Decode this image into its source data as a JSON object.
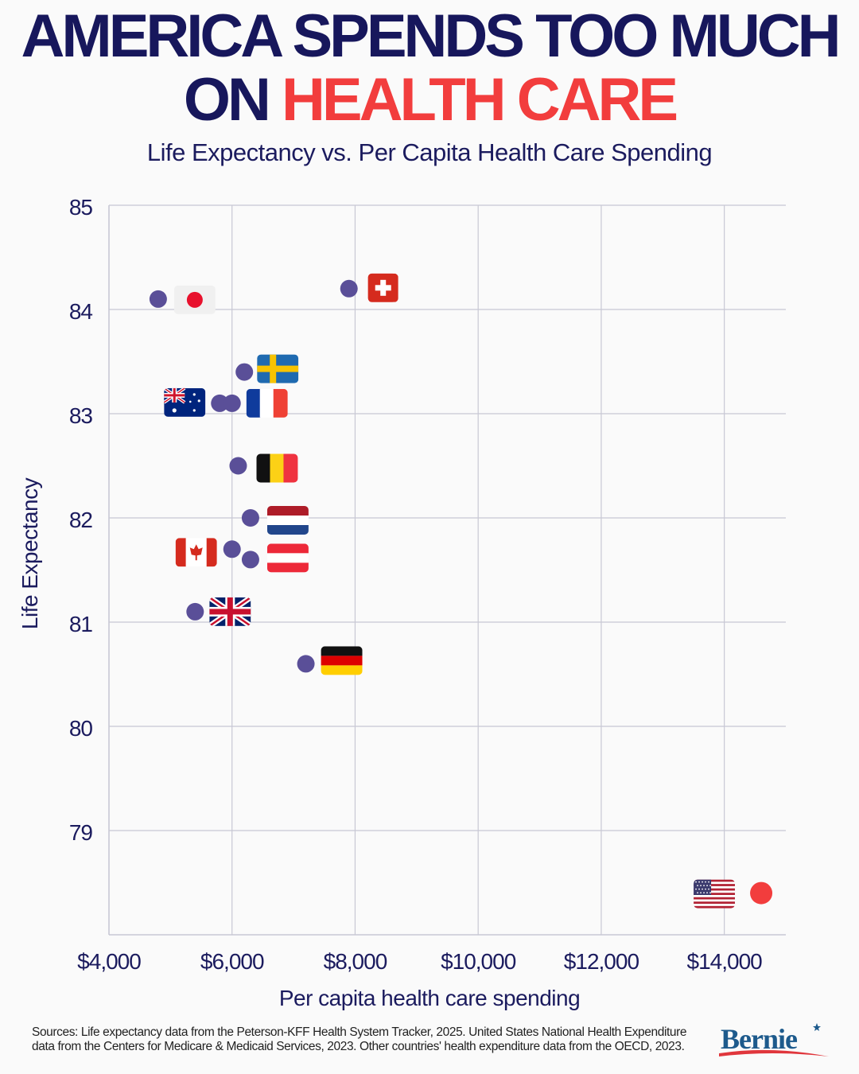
{
  "header": {
    "title_line1": "AMERICA SPENDS TOO MUCH",
    "title_line2_prefix": "ON ",
    "title_line2_highlight": "HEALTH CARE",
    "subtitle": "Life Expectancy vs. Per Capita Health Care Spending"
  },
  "colors": {
    "title": "#17175c",
    "highlight": "#f23d3d",
    "dot": "#5a4f98",
    "us_dot": "#f23d3d",
    "grid": "#c8c8d4"
  },
  "chart_data": {
    "type": "scatter",
    "title": "Life Expectancy vs. Per Capita Health Care Spending",
    "xlabel": "Per capita health care spending",
    "ylabel": "Life Expectancy",
    "xlim": [
      4000,
      15000
    ],
    "ylim": [
      78,
      85
    ],
    "xticks": [
      4000,
      6000,
      8000,
      10000,
      12000,
      14000
    ],
    "xtick_labels": [
      "$4,000",
      "$6,000",
      "$8,000",
      "$10,000",
      "$12,000",
      "$14,000"
    ],
    "yticks": [
      79,
      80,
      81,
      82,
      83,
      84,
      85
    ],
    "ytick_labels": [
      "79",
      "80",
      "81",
      "82",
      "83",
      "84",
      "85"
    ],
    "grid": true,
    "points": [
      {
        "country": "Japan",
        "flag": "japan-flag",
        "x": 4800,
        "y": 84.1
      },
      {
        "country": "Switzerland",
        "flag": "switzerland-flag",
        "x": 7900,
        "y": 84.2
      },
      {
        "country": "Sweden",
        "flag": "sweden-flag",
        "x": 6200,
        "y": 83.4
      },
      {
        "country": "Australia",
        "flag": "australia-flag",
        "x": 5800,
        "y": 83.1
      },
      {
        "country": "France",
        "flag": "france-flag",
        "x": 6000,
        "y": 83.1
      },
      {
        "country": "Belgium",
        "flag": "belgium-flag",
        "x": 6100,
        "y": 82.5
      },
      {
        "country": "Netherlands",
        "flag": "netherlands-flag",
        "x": 6300,
        "y": 82.0
      },
      {
        "country": "Canada",
        "flag": "canada-flag",
        "x": 6000,
        "y": 81.7
      },
      {
        "country": "Austria",
        "flag": "austria-flag",
        "x": 6300,
        "y": 81.6
      },
      {
        "country": "United Kingdom",
        "flag": "uk-flag",
        "x": 5400,
        "y": 81.1
      },
      {
        "country": "Germany",
        "flag": "germany-flag",
        "x": 7200,
        "y": 80.6
      },
      {
        "country": "United States",
        "flag": "usa-flag",
        "x": 14600,
        "y": 78.4,
        "highlight": true
      }
    ]
  },
  "footer": {
    "sources": "Sources: Life expectancy data from the Peterson-KFF Health System Tracker, 2025. United States National Health Expenditure data from the Centers for Medicare & Medicaid Services, 2023. Other countries' health expenditure data from the OECD, 2023.",
    "logo_text": "Bernie"
  }
}
